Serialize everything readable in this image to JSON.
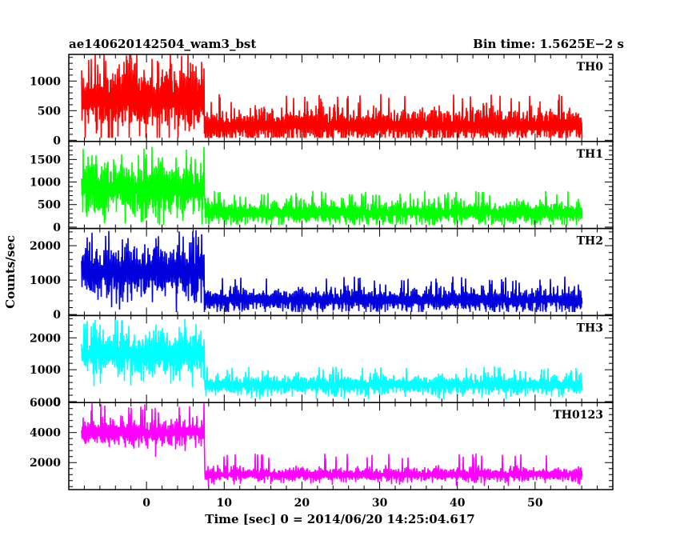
{
  "header": {
    "title": "ae140620142504_wam3_bst",
    "bin_time": "Bin time: 1.5625E−2 s"
  },
  "chart_data": {
    "type": "line",
    "xlabel": "Time [sec] 0 = 2014/06/20 14:25:04.617",
    "ylabel": "Counts/sec",
    "xlim": [
      -10,
      60
    ],
    "x_ticks": [
      "0",
      "10",
      "20",
      "30",
      "40",
      "50"
    ],
    "x_tick_values": [
      0,
      10,
      20,
      30,
      40,
      50
    ],
    "bin_time_s": 0.015625,
    "data_start": -8.4,
    "data_end": 56.0,
    "transition_time": 7.4,
    "panels": [
      {
        "name": "TH0",
        "color": "#ff0000",
        "ylim": [
          -20,
          1450
        ],
        "y_ticks": [
          "0",
          "500",
          "1000"
        ],
        "y_tick_values": [
          0,
          500,
          1000
        ],
        "burst_level": 700,
        "burst_noise": 320,
        "burst_max": 1450,
        "tail_level": 250,
        "tail_noise": 150,
        "tail_max": 780
      },
      {
        "name": "TH1",
        "color": "#00ff00",
        "ylim": [
          -30,
          1900
        ],
        "y_ticks": [
          "0",
          "500",
          "1000",
          "1500"
        ],
        "y_tick_values": [
          0,
          500,
          1000,
          1500
        ],
        "burst_level": 850,
        "burst_noise": 330,
        "burst_max": 1800,
        "tail_level": 320,
        "tail_noise": 140,
        "tail_max": 800
      },
      {
        "name": "TH2",
        "color": "#0000dd",
        "ylim": [
          -30,
          2500
        ],
        "y_ticks": [
          "0",
          "1000",
          "2000"
        ],
        "y_tick_values": [
          0,
          1000,
          2000
        ],
        "burst_level": 1250,
        "burst_noise": 420,
        "burst_max": 2450,
        "tail_level": 420,
        "tail_noise": 180,
        "tail_max": 1100
      },
      {
        "name": "TH3",
        "color": "#00ffff",
        "ylim": [
          -30,
          2700
        ],
        "y_ticks": [
          "0",
          "1000",
          "2000"
        ],
        "y_tick_values": [
          0,
          1000,
          2000
        ],
        "burst_level": 1500,
        "burst_noise": 400,
        "burst_max": 2600,
        "tail_level": 520,
        "tail_noise": 170,
        "tail_max": 1100
      },
      {
        "name": "TH0123",
        "color": "#ff00ff",
        "ylim": [
          200,
          6000
        ],
        "y_ticks": [
          "2000",
          "4000",
          "6000"
        ],
        "y_tick_values": [
          2000,
          4000,
          6000
        ],
        "burst_level": 4000,
        "burst_noise": 480,
        "burst_max": 5950,
        "tail_level": 1200,
        "tail_noise": 260,
        "tail_max": 2600
      }
    ]
  }
}
